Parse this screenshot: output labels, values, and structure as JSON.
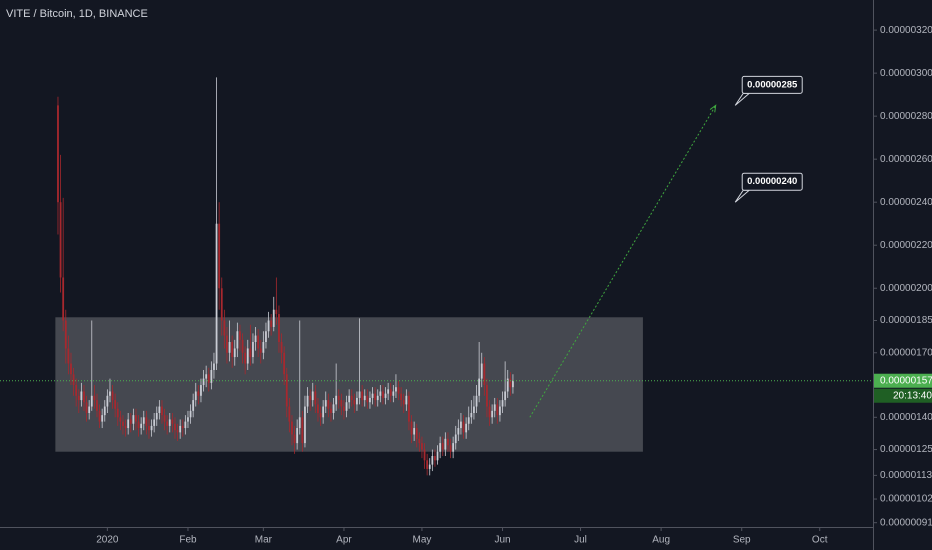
{
  "chart_data": {
    "type": "candlestick",
    "title": "VITE / Bitcoin, 1D, BINANCE",
    "open": [
      2.85e-06,
      2.4e-06,
      2.05e-06,
      1.85e-06,
      1.72e-06,
      1.65e-06,
      1.6e-06,
      1.55e-06,
      1.5e-06,
      1.48e-06,
      1.52e-06,
      1.47e-06,
      1.42e-06,
      1.45e-06,
      1.5e-06,
      1.48e-06,
      1.43e-06,
      1.38e-06,
      1.41e-06,
      1.45e-06,
      1.5e-06,
      1.52e-06,
      1.48e-06,
      1.44e-06,
      1.4e-06,
      1.38e-06,
      1.36e-06,
      1.35e-06,
      1.39e-06,
      1.37e-06,
      1.41e-06,
      1.38e-06,
      1.35e-06,
      1.37e-06,
      1.4e-06,
      1.36e-06,
      1.34e-06,
      1.36e-06,
      1.39e-06,
      1.42e-06,
      1.45e-06,
      1.41e-06,
      1.38e-06,
      1.36e-06,
      1.39e-06,
      1.37e-06,
      1.34e-06,
      1.33e-06,
      1.36e-06,
      1.35e-06,
      1.38e-06,
      1.4e-06,
      1.43e-06,
      1.48e-06,
      1.52e-06,
      1.5e-06,
      1.55e-06,
      1.58e-06,
      1.6e-06,
      1.56e-06,
      1.62e-06,
      1.65e-06,
      2.3e-06,
      2e-06,
      1.85e-06,
      1.78e-06,
      1.7e-06,
      1.75e-06,
      1.68e-06,
      1.72e-06,
      1.8e-06,
      1.76e-06,
      1.7e-06,
      1.65e-06,
      1.72e-06,
      1.68e-06,
      1.75e-06,
      1.78e-06,
      1.72e-06,
      1.7e-06,
      1.75e-06,
      1.8e-06,
      1.85e-06,
      1.82e-06,
      1.9e-06,
      1.88e-06,
      1.75e-06,
      1.7e-06,
      1.6e-06,
      1.45e-06,
      1.38e-06,
      1.32e-06,
      1.28e-06,
      1.35e-06,
      1.4e-06,
      1.28e-06,
      1.45e-06,
      1.5e-06,
      1.48e-06,
      1.52e-06,
      1.46e-06,
      1.42e-06,
      1.4e-06,
      1.45e-06,
      1.48e-06,
      1.44e-06,
      1.42e-06,
      1.46e-06,
      1.5e-06,
      1.48e-06,
      1.45e-06,
      1.43e-06,
      1.47e-06,
      1.5e-06,
      1.48e-06,
      1.46e-06,
      1.49e-06,
      1.52e-06,
      1.48e-06,
      1.5e-06,
      1.47e-06,
      1.49e-06,
      1.51e-06,
      1.48e-06,
      1.5e-06,
      1.52e-06,
      1.49e-06,
      1.51e-06,
      1.53e-06,
      1.5e-06,
      1.52e-06,
      1.54e-06,
      1.51e-06,
      1.48e-06,
      1.46e-06,
      1.5e-06,
      1.38e-06,
      1.32e-06,
      1.35e-06,
      1.3e-06,
      1.28e-06,
      1.25e-06,
      1.2e-06,
      1.16e-06,
      1.18e-06,
      1.22e-06,
      1.2e-06,
      1.24e-06,
      1.28e-06,
      1.25e-06,
      1.3e-06,
      1.27e-06,
      1.24e-06,
      1.28e-06,
      1.32e-06,
      1.35e-06,
      1.38e-06,
      1.33e-06,
      1.37e-06,
      1.4e-06,
      1.42e-06,
      1.45e-06,
      1.5e-06,
      1.58e-06,
      1.65e-06,
      1.55e-06,
      1.45e-06,
      1.4e-06,
      1.43e-06,
      1.46e-06,
      1.41e-06,
      1.45e-06,
      1.48e-06,
      1.52e-06,
      1.58e-06,
      1.54e-06
    ],
    "high": [
      2.89e-06,
      2.62e-06,
      2.42e-06,
      1.9e-06,
      1.78e-06,
      1.7e-06,
      1.63e-06,
      1.58e-06,
      1.53e-06,
      1.56e-06,
      1.55e-06,
      1.5e-06,
      1.48e-06,
      1.85e-06,
      1.55e-06,
      1.51e-06,
      1.46e-06,
      1.44e-06,
      1.48e-06,
      1.53e-06,
      1.58e-06,
      1.55e-06,
      1.51e-06,
      1.47e-06,
      1.43e-06,
      1.41e-06,
      1.39e-06,
      1.42e-06,
      1.42e-06,
      1.44e-06,
      1.44e-06,
      1.41e-06,
      1.4e-06,
      1.43e-06,
      1.43e-06,
      1.39e-06,
      1.39e-06,
      1.42e-06,
      1.45e-06,
      1.48e-06,
      1.48e-06,
      1.44e-06,
      1.41e-06,
      1.42e-06,
      1.42e-06,
      1.4e-06,
      1.37e-06,
      1.39e-06,
      1.39e-06,
      1.41e-06,
      1.43e-06,
      1.46e-06,
      1.51e-06,
      1.56e-06,
      1.55e-06,
      1.58e-06,
      1.62e-06,
      1.64e-06,
      1.63e-06,
      1.66e-06,
      1.7e-06,
      2.98e-06,
      2.4e-06,
      2.05e-06,
      1.9e-06,
      1.82e-06,
      1.85e-06,
      1.78e-06,
      1.76e-06,
      1.84e-06,
      1.83e-06,
      1.79e-06,
      1.73e-06,
      1.76e-06,
      1.83e-06,
      1.79e-06,
      1.82e-06,
      1.81e-06,
      1.76e-06,
      1.8e-06,
      1.84e-06,
      1.89e-06,
      1.88e-06,
      1.96e-06,
      2.05e-06,
      1.92e-06,
      1.79e-06,
      1.73e-06,
      1.63e-06,
      1.49e-06,
      1.41e-06,
      1.36e-06,
      1.39e-06,
      1.85e-06,
      1.43e-06,
      1.5e-06,
      1.54e-06,
      1.53e-06,
      1.56e-06,
      1.55e-06,
      1.49e-06,
      1.45e-06,
      1.48e-06,
      1.52e-06,
      1.51e-06,
      1.47e-06,
      1.49e-06,
      1.65e-06,
      1.53e-06,
      1.51e-06,
      1.48e-06,
      1.5e-06,
      1.53e-06,
      1.53e-06,
      1.51e-06,
      1.52e-06,
      1.86e-06,
      1.55e-06,
      1.53e-06,
      1.53e-06,
      1.52e-06,
      1.54e-06,
      1.54e-06,
      1.53e-06,
      1.55e-06,
      1.55e-06,
      1.54e-06,
      1.56e-06,
      1.56e-06,
      1.55e-06,
      1.6e-06,
      1.57e-06,
      1.54e-06,
      1.51e-06,
      1.53e-06,
      1.52e-06,
      1.41e-06,
      1.38e-06,
      1.37e-06,
      1.33e-06,
      1.31e-06,
      1.28e-06,
      1.23e-06,
      1.21e-06,
      1.25e-06,
      1.25e-06,
      1.27e-06,
      1.31e-06,
      1.31e-06,
      1.33e-06,
      1.33e-06,
      1.3e-06,
      1.31e-06,
      1.36e-06,
      1.39e-06,
      1.42e-06,
      1.41e-06,
      1.4e-06,
      1.45e-06,
      1.48e-06,
      1.5e-06,
      1.55e-06,
      1.75e-06,
      1.7e-06,
      1.68e-06,
      1.58e-06,
      1.48e-06,
      1.46e-06,
      1.49e-06,
      1.49e-06,
      1.48e-06,
      1.52e-06,
      1.66e-06,
      1.62e-06,
      1.61e-06,
      1.6e-06
    ],
    "low": [
      2.25e-06,
      1.98e-06,
      1.8e-06,
      1.65e-06,
      1.6e-06,
      1.55e-06,
      1.5e-06,
      1.45e-06,
      1.42e-06,
      1.45e-06,
      1.43e-06,
      1.38e-06,
      1.39e-06,
      1.43e-06,
      1.44e-06,
      1.4e-06,
      1.35e-06,
      1.35e-06,
      1.38e-06,
      1.42e-06,
      1.47e-06,
      1.44e-06,
      1.4e-06,
      1.36e-06,
      1.34e-06,
      1.32e-06,
      1.31e-06,
      1.32e-06,
      1.33e-06,
      1.34e-06,
      1.34e-06,
      1.31e-06,
      1.32e-06,
      1.34e-06,
      1.32e-06,
      1.3e-06,
      1.31e-06,
      1.33e-06,
      1.36e-06,
      1.39e-06,
      1.37e-06,
      1.34e-06,
      1.32e-06,
      1.33e-06,
      1.33e-06,
      1.3e-06,
      1.29e-06,
      1.3e-06,
      1.31e-06,
      1.32e-06,
      1.35e-06,
      1.37e-06,
      1.4e-06,
      1.45e-06,
      1.46e-06,
      1.47e-06,
      1.52e-06,
      1.54e-06,
      1.52e-06,
      1.53e-06,
      1.58e-06,
      1.62e-06,
      1.9e-06,
      1.78e-06,
      1.72e-06,
      1.65e-06,
      1.66e-06,
      1.63e-06,
      1.64e-06,
      1.68e-06,
      1.71e-06,
      1.65e-06,
      1.6e-06,
      1.62e-06,
      1.64e-06,
      1.65e-06,
      1.71e-06,
      1.68e-06,
      1.65e-06,
      1.67e-06,
      1.72e-06,
      1.77e-06,
      1.78e-06,
      1.8e-06,
      1.83e-06,
      1.7e-06,
      1.65e-06,
      1.55e-06,
      1.4e-06,
      1.33e-06,
      1.27e-06,
      1.23e-06,
      1.25e-06,
      1.32e-06,
      1.24e-06,
      1.26e-06,
      1.42e-06,
      1.43e-06,
      1.45e-06,
      1.42e-06,
      1.38e-06,
      1.36e-06,
      1.37e-06,
      1.42e-06,
      1.4e-06,
      1.38e-06,
      1.39e-06,
      1.43e-06,
      1.44e-06,
      1.41e-06,
      1.39e-06,
      1.4e-06,
      1.44e-06,
      1.45e-06,
      1.42e-06,
      1.43e-06,
      1.46e-06,
      1.45e-06,
      1.45e-06,
      1.44e-06,
      1.44e-06,
      1.46e-06,
      1.45e-06,
      1.45e-06,
      1.47e-06,
      1.46e-06,
      1.46e-06,
      1.48e-06,
      1.47e-06,
      1.47e-06,
      1.49e-06,
      1.48e-06,
      1.45e-06,
      1.42e-06,
      1.43e-06,
      1.34e-06,
      1.28e-06,
      1.29e-06,
      1.26e-06,
      1.24e-06,
      1.21e-06,
      1.16e-06,
      1.13e-06,
      1.13e-06,
      1.15e-06,
      1.17e-06,
      1.18e-06,
      1.21e-06,
      1.22e-06,
      1.22e-06,
      1.24e-06,
      1.21e-06,
      1.21e-06,
      1.25e-06,
      1.29e-06,
      1.32e-06,
      1.3e-06,
      1.3e-06,
      1.34e-06,
      1.37e-06,
      1.39e-06,
      1.42e-06,
      1.47e-06,
      1.54e-06,
      1.5e-06,
      1.4e-06,
      1.36e-06,
      1.37e-06,
      1.4e-06,
      1.37e-06,
      1.38e-06,
      1.42e-06,
      1.45e-06,
      1.49e-06,
      1.5e-06,
      1.51e-06
    ],
    "close": [
      2.4e-06,
      2.05e-06,
      1.85e-06,
      1.72e-06,
      1.65e-06,
      1.6e-06,
      1.55e-06,
      1.5e-06,
      1.48e-06,
      1.52e-06,
      1.47e-06,
      1.42e-06,
      1.45e-06,
      1.5e-06,
      1.48e-06,
      1.43e-06,
      1.38e-06,
      1.41e-06,
      1.45e-06,
      1.5e-06,
      1.52e-06,
      1.48e-06,
      1.44e-06,
      1.4e-06,
      1.38e-06,
      1.36e-06,
      1.35e-06,
      1.39e-06,
      1.37e-06,
      1.41e-06,
      1.38e-06,
      1.35e-06,
      1.37e-06,
      1.4e-06,
      1.36e-06,
      1.34e-06,
      1.36e-06,
      1.39e-06,
      1.42e-06,
      1.45e-06,
      1.41e-06,
      1.38e-06,
      1.36e-06,
      1.39e-06,
      1.37e-06,
      1.34e-06,
      1.33e-06,
      1.36e-06,
      1.35e-06,
      1.38e-06,
      1.4e-06,
      1.43e-06,
      1.48e-06,
      1.52e-06,
      1.5e-06,
      1.55e-06,
      1.58e-06,
      1.6e-06,
      1.56e-06,
      1.62e-06,
      1.65e-06,
      2.3e-06,
      2e-06,
      1.85e-06,
      1.78e-06,
      1.7e-06,
      1.75e-06,
      1.68e-06,
      1.72e-06,
      1.8e-06,
      1.76e-06,
      1.7e-06,
      1.65e-06,
      1.72e-06,
      1.68e-06,
      1.75e-06,
      1.78e-06,
      1.72e-06,
      1.7e-06,
      1.75e-06,
      1.8e-06,
      1.85e-06,
      1.82e-06,
      1.9e-06,
      1.88e-06,
      1.75e-06,
      1.7e-06,
      1.6e-06,
      1.45e-06,
      1.38e-06,
      1.32e-06,
      1.28e-06,
      1.35e-06,
      1.4e-06,
      1.28e-06,
      1.45e-06,
      1.5e-06,
      1.48e-06,
      1.52e-06,
      1.46e-06,
      1.42e-06,
      1.4e-06,
      1.45e-06,
      1.48e-06,
      1.44e-06,
      1.42e-06,
      1.46e-06,
      1.5e-06,
      1.48e-06,
      1.45e-06,
      1.43e-06,
      1.47e-06,
      1.5e-06,
      1.48e-06,
      1.46e-06,
      1.49e-06,
      1.52e-06,
      1.48e-06,
      1.5e-06,
      1.47e-06,
      1.49e-06,
      1.51e-06,
      1.48e-06,
      1.5e-06,
      1.52e-06,
      1.49e-06,
      1.51e-06,
      1.53e-06,
      1.5e-06,
      1.52e-06,
      1.54e-06,
      1.51e-06,
      1.48e-06,
      1.46e-06,
      1.5e-06,
      1.38e-06,
      1.32e-06,
      1.35e-06,
      1.3e-06,
      1.28e-06,
      1.25e-06,
      1.2e-06,
      1.16e-06,
      1.18e-06,
      1.22e-06,
      1.2e-06,
      1.24e-06,
      1.28e-06,
      1.25e-06,
      1.3e-06,
      1.27e-06,
      1.24e-06,
      1.28e-06,
      1.32e-06,
      1.35e-06,
      1.38e-06,
      1.33e-06,
      1.37e-06,
      1.4e-06,
      1.42e-06,
      1.45e-06,
      1.5e-06,
      1.58e-06,
      1.65e-06,
      1.55e-06,
      1.45e-06,
      1.4e-06,
      1.43e-06,
      1.46e-06,
      1.41e-06,
      1.45e-06,
      1.48e-06,
      1.52e-06,
      1.58e-06,
      1.54e-06,
      1.57e-06
    ],
    "up_color": "#c9ccd4",
    "down_color": "#a8282e",
    "xlim": [
      -22.3,
      313.5
    ],
    "xticks": [
      {
        "value": 19,
        "label": "2020"
      },
      {
        "value": 50,
        "label": "Feb"
      },
      {
        "value": 79,
        "label": "Mar"
      },
      {
        "value": 110,
        "label": "Apr"
      },
      {
        "value": 140,
        "label": "May"
      },
      {
        "value": 171,
        "label": "Jun"
      },
      {
        "value": 201,
        "label": "Jul"
      },
      {
        "value": 232,
        "label": "Aug"
      },
      {
        "value": 263,
        "label": "Sep"
      },
      {
        "value": 293,
        "label": "Oct"
      }
    ],
    "ylim": [
      8.9e-07,
      3.34e-06
    ],
    "yticks": [
      {
        "value": 3.2e-06,
        "label": "0.00000320"
      },
      {
        "value": 3e-06,
        "label": "0.00000300"
      },
      {
        "value": 2.8e-06,
        "label": "0.00000280"
      },
      {
        "value": 2.6e-06,
        "label": "0.00000260"
      },
      {
        "value": 2.4e-06,
        "label": "0.00000240"
      },
      {
        "value": 2.2e-06,
        "label": "0.00000220"
      },
      {
        "value": 2e-06,
        "label": "0.00000200"
      },
      {
        "value": 1.85e-06,
        "label": "0.00000185"
      },
      {
        "value": 1.7e-06,
        "label": "0.00000170"
      },
      {
        "value": 1.4e-06,
        "label": "0.00000140"
      },
      {
        "value": 1.25e-06,
        "label": "0.00000125"
      },
      {
        "value": 1.13e-06,
        "label": "0.00000113"
      },
      {
        "value": 1.02e-06,
        "label": "0.00000102"
      },
      {
        "value": 9.1e-07,
        "label": "0.00000091"
      }
    ],
    "last_price": {
      "value": 1.57e-06,
      "label": "0.00000157",
      "color": "#4caf50"
    },
    "countdown": "20:13:40",
    "range_box": {
      "x": [
        -1,
        225
      ],
      "y": [
        1.24e-06,
        1.865e-06
      ]
    },
    "arrow": {
      "x": [
        181.5,
        253
      ],
      "y": [
        1.4e-06,
        2.85e-06
      ],
      "color": "#3fa63f"
    },
    "callouts": [
      {
        "x": 260.5,
        "value": 2.85e-06,
        "label": "0.00000285"
      },
      {
        "x": 260.5,
        "value": 2.4e-06,
        "label": "0.00000240"
      }
    ]
  }
}
